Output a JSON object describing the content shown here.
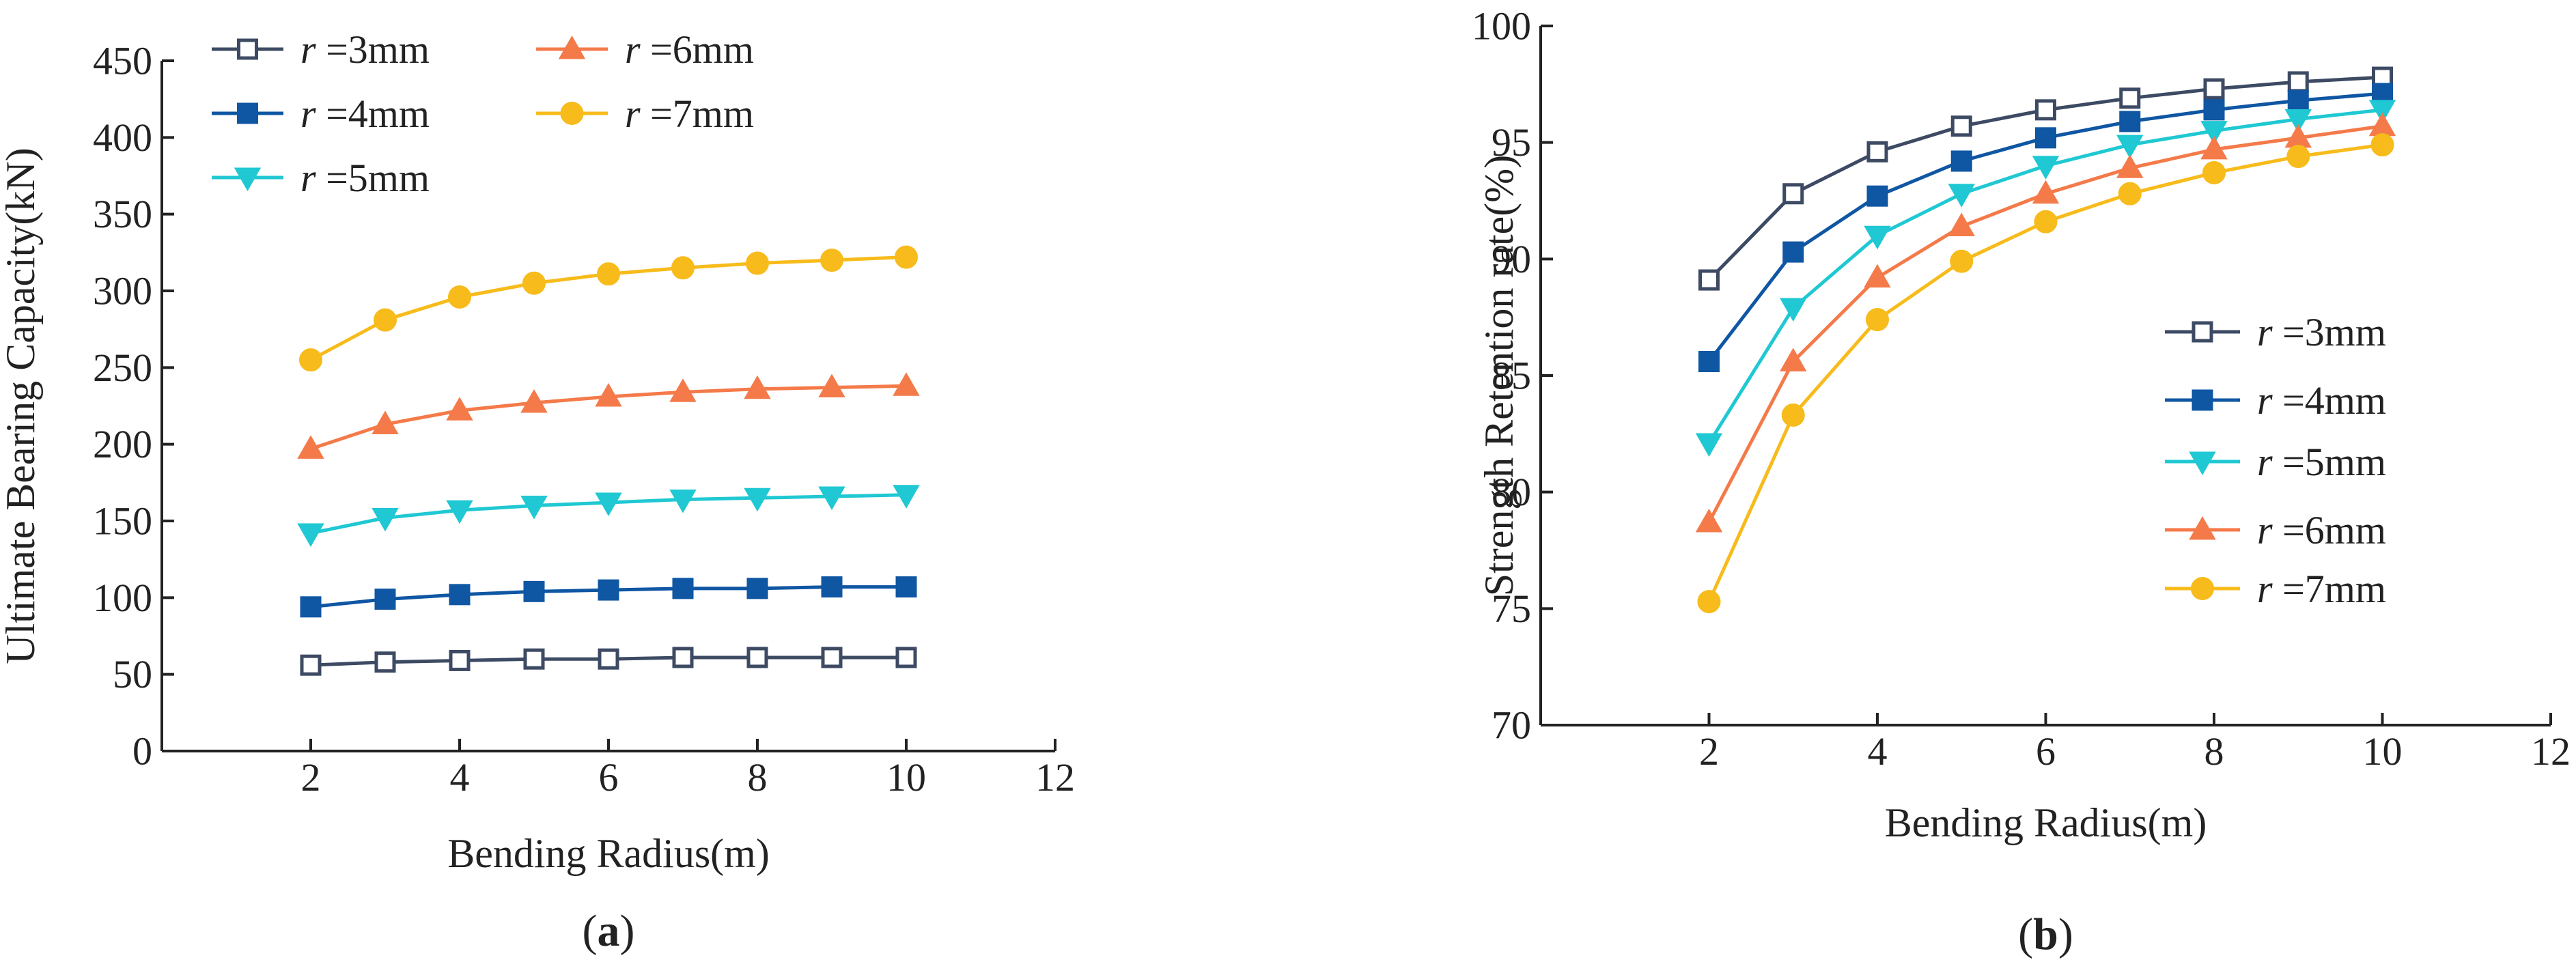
{
  "chart_data": [
    {
      "panel": "a",
      "panel_label": {
        "open": "(",
        "letter": "a",
        "close": ")"
      },
      "type": "line",
      "title": "",
      "xlabel": "Bending Radius(m)",
      "ylabel": "Ultimate Bearing Capacity(kN)",
      "xlim": [
        0,
        12
      ],
      "ylim": [
        0,
        450
      ],
      "x_ticks": [
        2,
        4,
        6,
        8,
        10,
        12
      ],
      "y_ticks": [
        0,
        50,
        100,
        150,
        200,
        250,
        300,
        350,
        400,
        450
      ],
      "legend_position": "top-left",
      "x": [
        2,
        3,
        4,
        5,
        6,
        7,
        8,
        9,
        10
      ],
      "series": [
        {
          "name": "r =3mm",
          "r_symbol": "r",
          "r_value": " =3mm",
          "color": "#3d4a63",
          "marker": "square-open",
          "values": [
            56,
            58,
            59,
            60,
            60,
            61,
            61,
            61,
            61
          ]
        },
        {
          "name": "r =4mm",
          "r_symbol": "r",
          "r_value": " =4mm",
          "color": "#0f56a3",
          "marker": "square",
          "values": [
            94,
            99,
            102,
            104,
            105,
            106,
            106,
            107,
            107
          ]
        },
        {
          "name": "r =5mm",
          "r_symbol": "r",
          "r_value": " =5mm",
          "color": "#1fc8d2",
          "marker": "triangle-down",
          "values": [
            142,
            152,
            157,
            160,
            162,
            164,
            165,
            166,
            167
          ]
        },
        {
          "name": "r =6mm",
          "r_symbol": "r",
          "r_value": " =6mm",
          "color": "#f47a4a",
          "marker": "triangle-up",
          "values": [
            197,
            213,
            222,
            227,
            231,
            234,
            236,
            237,
            238
          ]
        },
        {
          "name": "r =7mm",
          "r_symbol": "r",
          "r_value": " =7mm",
          "color": "#f7bb1b",
          "marker": "circle",
          "values": [
            255,
            281,
            296,
            305,
            311,
            315,
            318,
            320,
            322
          ]
        }
      ]
    },
    {
      "panel": "b",
      "panel_label": {
        "open": "(",
        "letter": "b",
        "close": ")"
      },
      "type": "line",
      "title": "",
      "xlabel": "Bending Radius(m)",
      "ylabel": "Strength Retention rate(%)",
      "xlim": [
        0,
        12
      ],
      "ylim": [
        70,
        100
      ],
      "x_ticks": [
        2,
        4,
        6,
        8,
        10,
        12
      ],
      "y_ticks": [
        70,
        75,
        80,
        85,
        90,
        95,
        100
      ],
      "legend_position": "right",
      "x": [
        2,
        3,
        4,
        5,
        6,
        7,
        8,
        9,
        10
      ],
      "series": [
        {
          "name": "r =3mm",
          "r_symbol": "r",
          "r_value": " =3mm",
          "color": "#3d4a63",
          "marker": "square-open",
          "values": [
            89.1,
            92.8,
            94.6,
            95.7,
            96.4,
            96.9,
            97.3,
            97.6,
            97.8
          ]
        },
        {
          "name": "r =4mm",
          "r_symbol": "r",
          "r_value": " =4mm",
          "color": "#0f56a3",
          "marker": "square",
          "values": [
            85.6,
            90.3,
            92.7,
            94.2,
            95.2,
            95.9,
            96.4,
            96.8,
            97.1
          ]
        },
        {
          "name": "r =5mm",
          "r_symbol": "r",
          "r_value": " =5mm",
          "color": "#1fc8d2",
          "marker": "triangle-down",
          "values": [
            82.1,
            87.9,
            91.0,
            92.8,
            94.0,
            94.9,
            95.5,
            96.0,
            96.4
          ]
        },
        {
          "name": "r =6mm",
          "r_symbol": "r",
          "r_value": " =6mm",
          "color": "#f47a4a",
          "marker": "triangle-up",
          "values": [
            78.7,
            85.6,
            89.2,
            91.4,
            92.8,
            93.9,
            94.7,
            95.2,
            95.7
          ]
        },
        {
          "name": "r =7mm",
          "r_symbol": "r",
          "r_value": " =7mm",
          "color": "#f7bb1b",
          "marker": "circle",
          "values": [
            75.3,
            83.3,
            87.4,
            89.9,
            91.6,
            92.8,
            93.7,
            94.4,
            94.9
          ]
        }
      ]
    }
  ]
}
